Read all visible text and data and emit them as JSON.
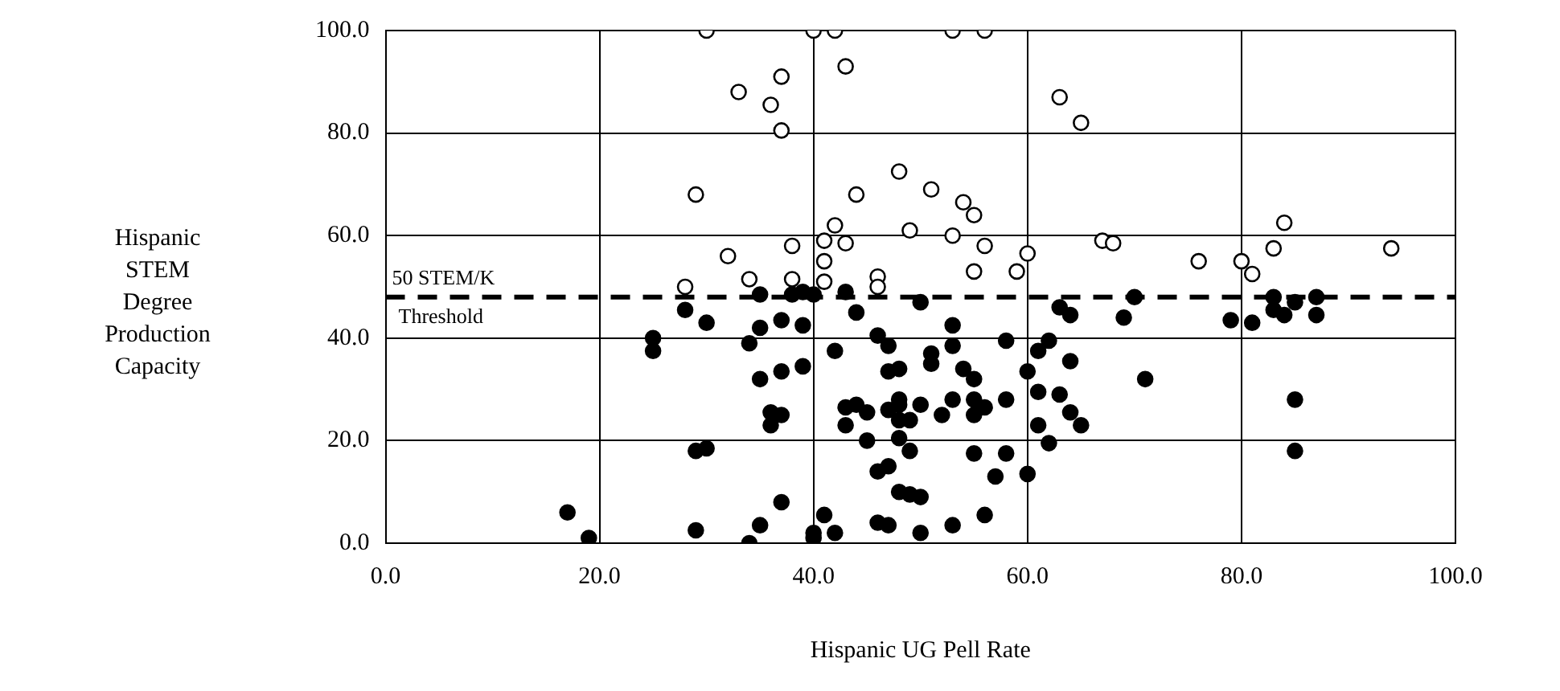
{
  "chart_data": {
    "type": "scatter",
    "xlabel": "Hispanic UG Pell Rate",
    "ylabel": "Hispanic STEM Degree Production Capacity",
    "xlim": [
      0,
      100
    ],
    "ylim": [
      0,
      100
    ],
    "xticks": [
      {
        "value": 0,
        "label": "0.0"
      },
      {
        "value": 20,
        "label": "20.0"
      },
      {
        "value": 40,
        "label": "40.0"
      },
      {
        "value": 60,
        "label": "60.0"
      },
      {
        "value": 80,
        "label": "80.0"
      },
      {
        "value": 100,
        "label": "100.0"
      }
    ],
    "yticks": [
      {
        "value": 0,
        "label": "0.0"
      },
      {
        "value": 20,
        "label": "20.0"
      },
      {
        "value": 40,
        "label": "40.0"
      },
      {
        "value": 60,
        "label": "60.0"
      },
      {
        "value": 80,
        "label": "80.0"
      },
      {
        "value": 100,
        "label": "100.0"
      }
    ],
    "grid": true,
    "legend": false,
    "marker": "circle",
    "ref_lines": [
      {
        "axis": "y",
        "value": 48,
        "label": "50 STEM/K Threshold",
        "color": "#000000",
        "line_style": "dashed"
      }
    ],
    "series": [
      {
        "color": "#ffffff",
        "x": [
          30,
          40,
          42,
          53,
          56,
          33,
          36,
          37,
          37,
          43,
          63,
          65,
          29,
          44,
          48,
          51,
          54,
          55,
          42,
          49,
          53,
          38,
          41,
          43,
          56,
          67,
          68,
          84,
          83,
          94,
          76,
          80,
          81,
          32,
          41,
          34,
          38,
          41,
          46,
          46,
          28,
          55,
          59,
          60
        ],
        "values": [
          100,
          100,
          100,
          100,
          100,
          88,
          85.5,
          91,
          80.5,
          93,
          87,
          82,
          68,
          68,
          72.5,
          69,
          66.5,
          64,
          62,
          61,
          60,
          58,
          59,
          58.5,
          58,
          59,
          58.5,
          62.5,
          57.5,
          57.5,
          55,
          55,
          52.5,
          56,
          55,
          51.5,
          51.5,
          51,
          52,
          50,
          50,
          53,
          53,
          56.5
        ]
      },
      {
        "color": "#000000",
        "x": [
          17,
          19,
          25,
          25,
          28,
          29,
          30,
          29,
          30,
          34,
          34,
          35,
          35,
          35,
          35,
          36,
          36,
          37,
          37,
          37,
          37,
          38,
          39,
          39,
          39,
          40,
          40,
          40,
          41,
          42,
          42,
          43,
          43,
          43,
          44,
          44,
          45,
          45,
          46,
          46,
          46,
          47,
          47,
          47,
          47,
          47,
          48,
          48,
          48,
          48,
          48,
          48,
          49,
          49,
          49,
          50,
          50,
          50,
          50,
          51,
          51,
          52,
          53,
          53,
          53,
          53,
          54,
          55,
          55,
          55,
          55,
          56,
          56,
          57,
          58,
          58,
          58,
          60,
          60,
          61,
          61,
          61,
          62,
          62,
          63,
          63,
          64,
          64,
          64,
          65,
          69,
          70,
          71,
          79,
          81,
          83,
          83,
          84,
          85,
          85,
          85,
          87,
          87
        ],
        "values": [
          6,
          1,
          40,
          37.5,
          45.5,
          18,
          18.5,
          2.5,
          43,
          39,
          0,
          48.5,
          42,
          32,
          3.5,
          25.5,
          23,
          43.5,
          33.5,
          25,
          8,
          48.5,
          49,
          42.5,
          34.5,
          48.5,
          2,
          1,
          5.5,
          37.5,
          2,
          49,
          26.5,
          23,
          45,
          27,
          20,
          25.5,
          40.5,
          14,
          4,
          38.5,
          33.5,
          26,
          15,
          3.5,
          34,
          28,
          27,
          24,
          20.5,
          10,
          24,
          18,
          9.5,
          47,
          27,
          9,
          2,
          37,
          35,
          25,
          42.5,
          38.5,
          28,
          3.5,
          34,
          32,
          28,
          25,
          17.5,
          26.5,
          5.5,
          13,
          39.5,
          28,
          17.5,
          33.5,
          13.5,
          37.5,
          29.5,
          23,
          39.5,
          19.5,
          46,
          29,
          44.5,
          35.5,
          25.5,
          23,
          44,
          48,
          32,
          43.5,
          43,
          48,
          45.5,
          44.5,
          47,
          28,
          18,
          48,
          44.5
        ]
      }
    ]
  }
}
